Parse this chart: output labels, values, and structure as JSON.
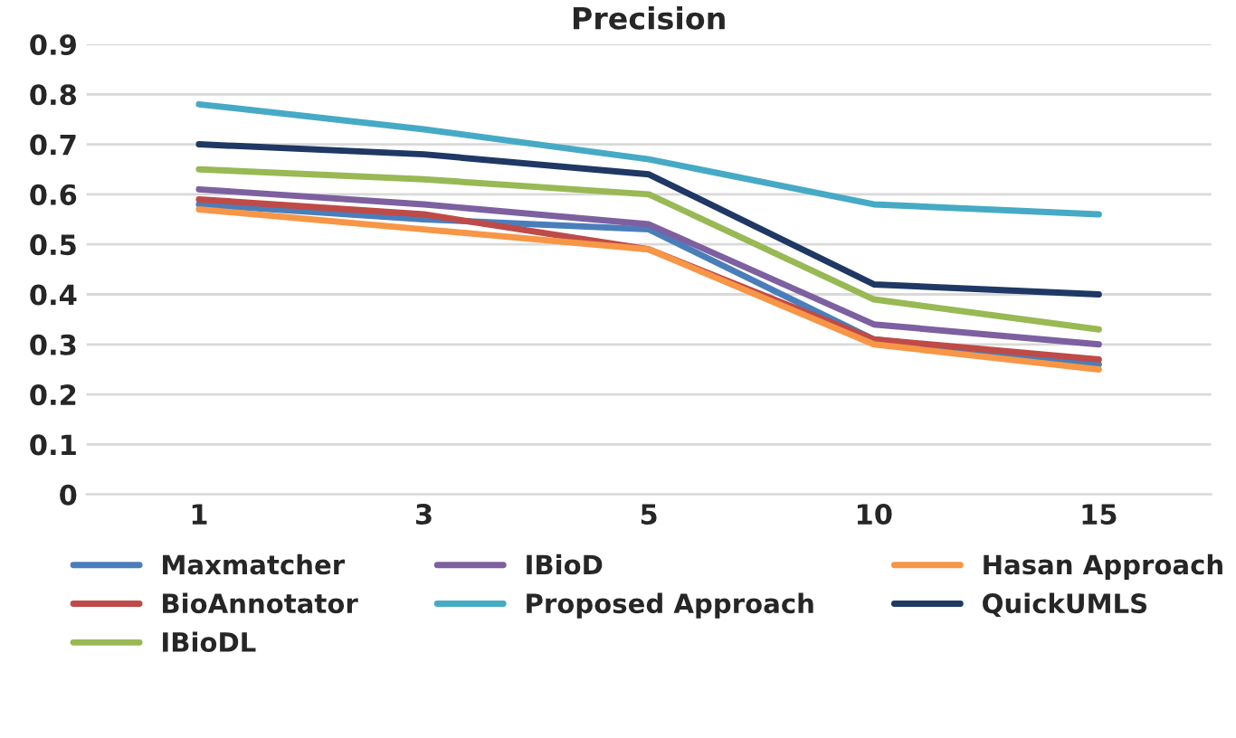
{
  "chart_data": {
    "type": "line",
    "title": "Precision",
    "categories": [
      "1",
      "3",
      "5",
      "10",
      "15"
    ],
    "series": [
      {
        "name": "Maxmatcher",
        "color": "#4a7ebb",
        "values": [
          0.58,
          0.55,
          0.53,
          0.31,
          0.26
        ]
      },
      {
        "name": "BioAnnotator",
        "color": "#be4b48",
        "values": [
          0.59,
          0.56,
          0.49,
          0.31,
          0.27
        ]
      },
      {
        "name": "IBioDL",
        "color": "#98b954",
        "values": [
          0.65,
          0.63,
          0.6,
          0.39,
          0.33
        ]
      },
      {
        "name": "IBioD",
        "color": "#7d60a0",
        "values": [
          0.61,
          0.58,
          0.54,
          0.34,
          0.3
        ]
      },
      {
        "name": "Proposed Approach",
        "color": "#46aac5",
        "values": [
          0.78,
          0.73,
          0.67,
          0.58,
          0.56
        ]
      },
      {
        "name": "Hasan Approach",
        "color": "#f79646",
        "values": [
          0.57,
          0.53,
          0.49,
          0.3,
          0.25
        ]
      },
      {
        "name": "QuickUMLS",
        "color": "#1f3864",
        "values": [
          0.7,
          0.68,
          0.64,
          0.42,
          0.4
        ]
      }
    ],
    "ylim": [
      0,
      0.9
    ],
    "yticks": [
      0,
      0.1,
      0.2,
      0.3,
      0.4,
      0.5,
      0.6,
      0.7,
      0.8,
      0.9
    ],
    "grid": "y",
    "legend": "bottom",
    "marker": "none",
    "line_style": "solid"
  }
}
